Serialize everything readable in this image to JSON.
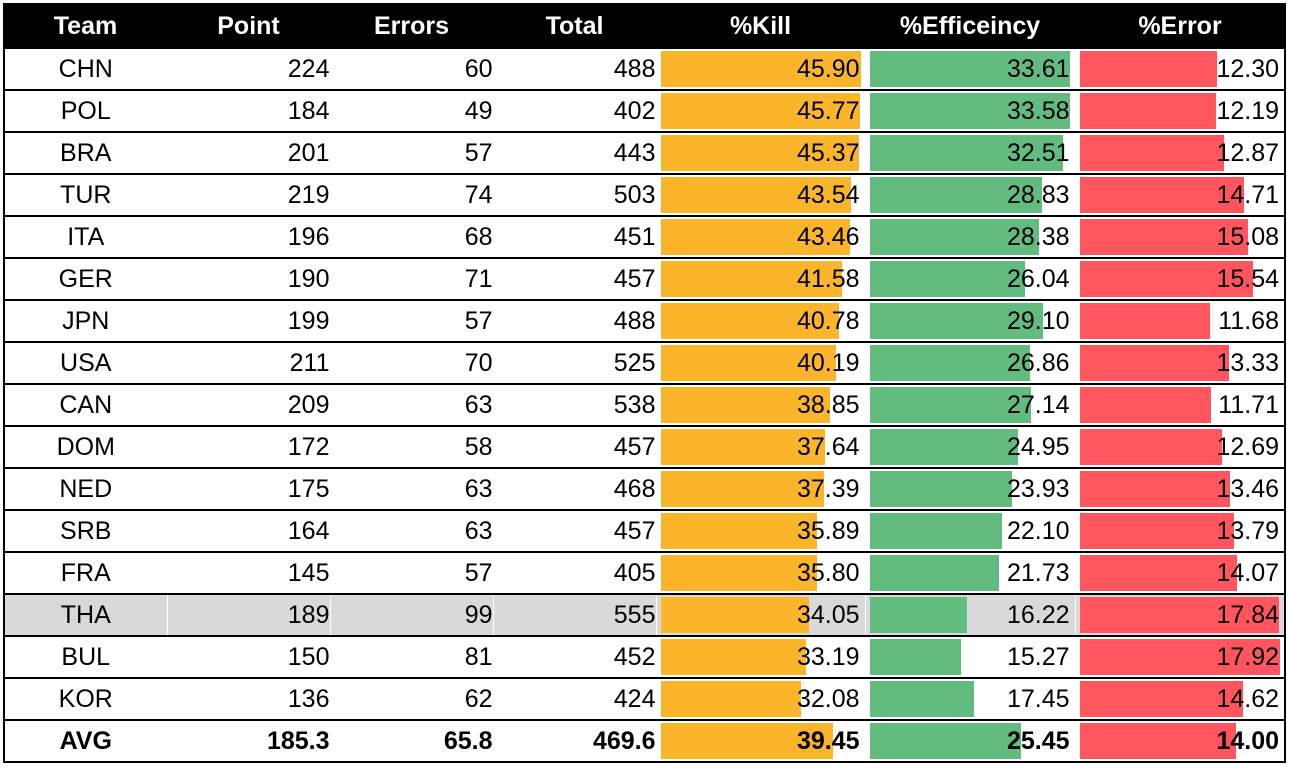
{
  "headers": {
    "team": "Team",
    "point": "Point",
    "errors": "Errors",
    "total": "Total",
    "kill": "%Kill",
    "efficiency": "%Efficeincy",
    "error": "%Error"
  },
  "colors": {
    "kill_bar": "#fbb52b",
    "efficiency_bar": "#62bc80",
    "error_bar": "#ff555e",
    "header_bg": "#000000",
    "highlight_row": "#d9d9d9"
  },
  "bar_scale": {
    "kill_max": 45.9,
    "efficiency_max": 33.61,
    "error_max": 17.92
  },
  "rows": [
    {
      "team": "CHN",
      "point": "224",
      "errors": "60",
      "total": "488",
      "kill": "45.90",
      "efficiency": "33.61",
      "error": "12.30"
    },
    {
      "team": "POL",
      "point": "184",
      "errors": "49",
      "total": "402",
      "kill": "45.77",
      "efficiency": "33.58",
      "error": "12.19"
    },
    {
      "team": "BRA",
      "point": "201",
      "errors": "57",
      "total": "443",
      "kill": "45.37",
      "efficiency": "32.51",
      "error": "12.87"
    },
    {
      "team": "TUR",
      "point": "219",
      "errors": "74",
      "total": "503",
      "kill": "43.54",
      "efficiency": "28.83",
      "error": "14.71"
    },
    {
      "team": "ITA",
      "point": "196",
      "errors": "68",
      "total": "451",
      "kill": "43.46",
      "efficiency": "28.38",
      "error": "15.08"
    },
    {
      "team": "GER",
      "point": "190",
      "errors": "71",
      "total": "457",
      "kill": "41.58",
      "efficiency": "26.04",
      "error": "15.54"
    },
    {
      "team": "JPN",
      "point": "199",
      "errors": "57",
      "total": "488",
      "kill": "40.78",
      "efficiency": "29.10",
      "error": "11.68"
    },
    {
      "team": "USA",
      "point": "211",
      "errors": "70",
      "total": "525",
      "kill": "40.19",
      "efficiency": "26.86",
      "error": "13.33"
    },
    {
      "team": "CAN",
      "point": "209",
      "errors": "63",
      "total": "538",
      "kill": "38.85",
      "efficiency": "27.14",
      "error": "11.71"
    },
    {
      "team": "DOM",
      "point": "172",
      "errors": "58",
      "total": "457",
      "kill": "37.64",
      "efficiency": "24.95",
      "error": "12.69"
    },
    {
      "team": "NED",
      "point": "175",
      "errors": "63",
      "total": "468",
      "kill": "37.39",
      "efficiency": "23.93",
      "error": "13.46"
    },
    {
      "team": "SRB",
      "point": "164",
      "errors": "63",
      "total": "457",
      "kill": "35.89",
      "efficiency": "22.10",
      "error": "13.79"
    },
    {
      "team": "FRA",
      "point": "145",
      "errors": "57",
      "total": "405",
      "kill": "35.80",
      "efficiency": "21.73",
      "error": "14.07"
    },
    {
      "team": "THA",
      "point": "189",
      "errors": "99",
      "total": "555",
      "kill": "34.05",
      "efficiency": "16.22",
      "error": "17.84",
      "highlight": true
    },
    {
      "team": "BUL",
      "point": "150",
      "errors": "81",
      "total": "452",
      "kill": "33.19",
      "efficiency": "15.27",
      "error": "17.92"
    },
    {
      "team": "KOR",
      "point": "136",
      "errors": "62",
      "total": "424",
      "kill": "32.08",
      "efficiency": "17.45",
      "error": "14.62"
    }
  ],
  "avg": {
    "team": "AVG",
    "point": "185.3",
    "errors": "65.8",
    "total": "469.6",
    "kill": "39.45",
    "efficiency": "25.45",
    "error": "14.00"
  }
}
